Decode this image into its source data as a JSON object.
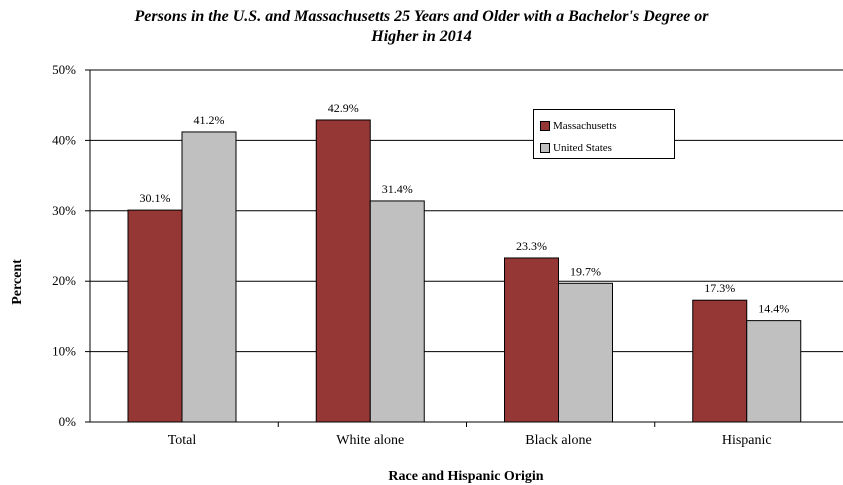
{
  "chart_data": {
    "type": "bar",
    "title_line1": "Persons in the U.S. and Massachusetts 25 Years and Older with a Bachelor's Degree or",
    "title_line2": "Higher in 2014",
    "xlabel": "Race and Hispanic Origin",
    "ylabel": "Percent",
    "categories": [
      "Total",
      "White alone",
      "Black alone",
      "Hispanic"
    ],
    "series": [
      {
        "name": "Massachusetts",
        "color": "#953735",
        "values": [
          30.1,
          42.9,
          23.3,
          17.3
        ],
        "labels": [
          "30.1%",
          "42.9%",
          "23.3%",
          "17.3%"
        ]
      },
      {
        "name": "United States",
        "color": "#c0c0c0",
        "values": [
          41.2,
          31.4,
          19.7,
          14.4
        ],
        "labels": [
          "41.2%",
          "31.4%",
          "19.7%",
          "14.4%"
        ]
      }
    ],
    "ylim": [
      0,
      50
    ],
    "yticks": [
      0,
      10,
      20,
      30,
      40,
      50
    ],
    "ytick_labels": [
      "0%",
      "10%",
      "20%",
      "30%",
      "40%",
      "50%"
    ],
    "grid": true,
    "legend_position": "top-right"
  }
}
